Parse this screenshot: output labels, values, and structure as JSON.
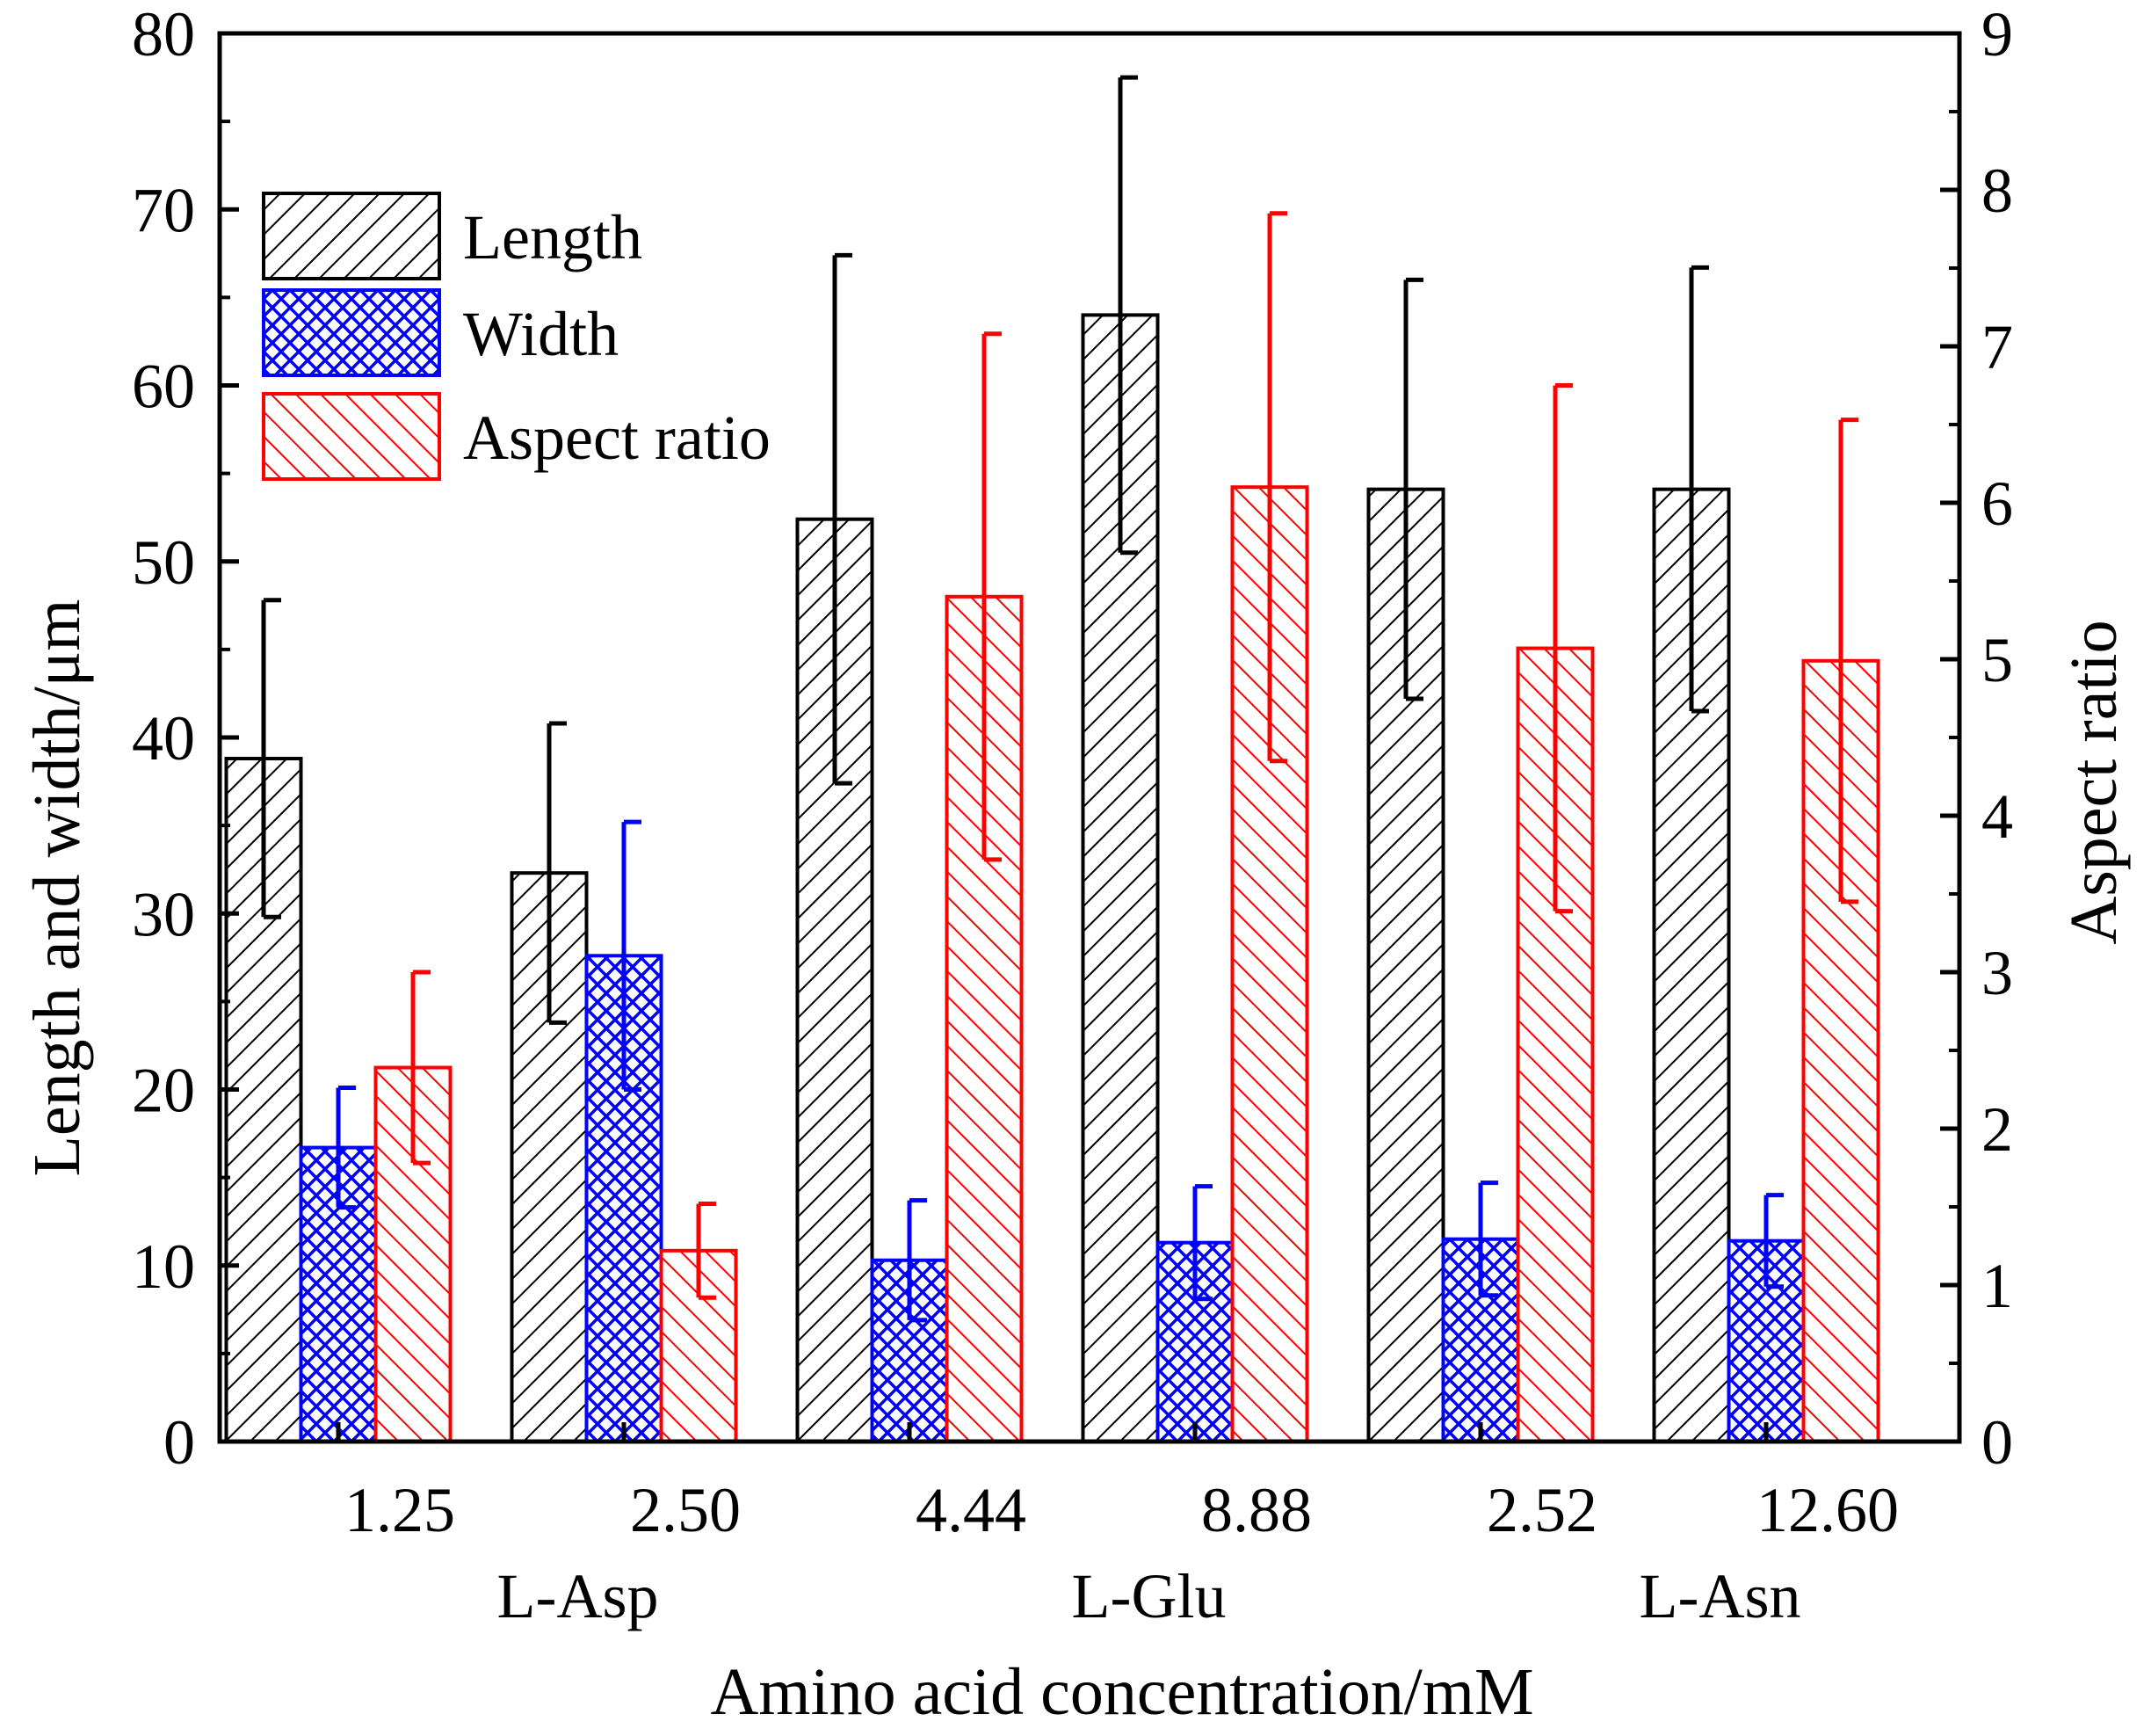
{
  "chart_data": {
    "type": "bar",
    "xlabel": "Amino acid concentration/mM",
    "ylabel": "Length and width/μm",
    "y2label": "Aspect ratio",
    "ylim": [
      0,
      80
    ],
    "y2lim": [
      0,
      9
    ],
    "yticks": [
      "0",
      "10",
      "20",
      "30",
      "40",
      "50",
      "60",
      "70",
      "80"
    ],
    "y2ticks": [
      "0",
      "1",
      "2",
      "3",
      "4",
      "5",
      "6",
      "7",
      "8",
      "9"
    ],
    "categories": [
      "1.25",
      "2.50",
      "4.44",
      "8.88",
      "2.52",
      "12.60"
    ],
    "groups": [
      {
        "label": "L-Asp",
        "categories": [
          "1.25",
          "2.50"
        ]
      },
      {
        "label": "L-Glu",
        "categories": [
          "4.44",
          "8.88"
        ]
      },
      {
        "label": "L-Asn",
        "categories": [
          "2.52",
          "12.60"
        ]
      }
    ],
    "series": [
      {
        "name": "Length",
        "axis": "left",
        "color": "#000000",
        "pattern": "hatch-forward",
        "values": [
          38.8,
          32.3,
          52.4,
          64.0,
          54.1,
          54.1
        ],
        "errors": [
          9.0,
          8.5,
          15.0,
          13.5,
          11.9,
          12.6
        ]
      },
      {
        "name": "Width",
        "axis": "left",
        "color": "#0000ff",
        "pattern": "crosshatch",
        "values": [
          16.7,
          27.6,
          10.3,
          11.3,
          11.5,
          11.4
        ],
        "errors": [
          3.4,
          7.6,
          3.4,
          3.2,
          3.2,
          2.6
        ]
      },
      {
        "name": "Aspect ratio",
        "axis": "right",
        "color": "#ff0000",
        "pattern": "hatch-backward",
        "values": [
          2.39,
          1.22,
          5.4,
          6.1,
          5.07,
          4.99
        ],
        "errors": [
          0.61,
          0.3,
          1.68,
          1.75,
          1.68,
          1.54
        ]
      }
    ],
    "legend": {
      "position": "top-left"
    }
  }
}
